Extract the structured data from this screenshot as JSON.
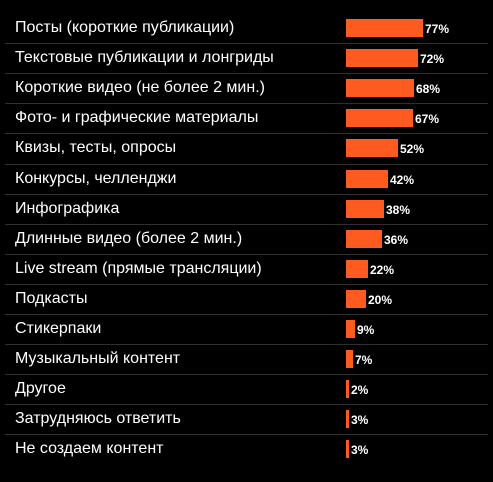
{
  "chart_data": {
    "type": "bar",
    "orientation": "horizontal",
    "categories": [
      "Посты (короткие публикации)",
      "Текстовые публикации и лонгриды",
      "Короткие видео (не более 2 мин.)",
      "Фото- и графические материалы",
      "Квизы, тесты, опросы",
      "Конкурсы, челленджи",
      "Инфографика",
      "Длинные видео (более 2 мин.)",
      "Live stream (прямые трансляции)",
      "Подкасты",
      "Стикерпаки",
      "Музыкальный контент",
      "Другое",
      "Затрудняюсь ответить",
      "Не создаем контент"
    ],
    "values": [
      77,
      72,
      68,
      67,
      52,
      42,
      38,
      36,
      22,
      20,
      9,
      7,
      2,
      3,
      3
    ],
    "value_labels": [
      "77%",
      "72%",
      "68%",
      "67%",
      "52%",
      "42%",
      "38%",
      "36%",
      "22%",
      "20%",
      "9%",
      "7%",
      "2%",
      "3%",
      "3%"
    ],
    "xlim": [
      0,
      100
    ],
    "grid": false,
    "colors": {
      "bar": "#ff5a1f",
      "background": "#000000",
      "text": "#ffffff",
      "divider": "#2f2f2f"
    }
  }
}
